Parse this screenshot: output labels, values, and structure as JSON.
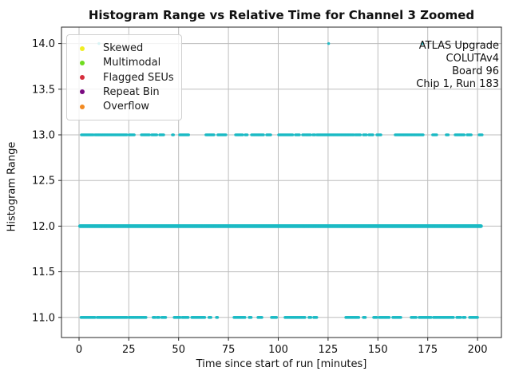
{
  "chart_data": {
    "type": "scatter",
    "title": "Histogram Range vs Relative Time for Channel 3 Zoomed",
    "xlabel": "Time since start of run [minutes]",
    "ylabel": "Histogram Range",
    "xlim": [
      -8.8,
      212
    ],
    "ylim": [
      10.78,
      14.18
    ],
    "grid": true,
    "point_color": "#1ab9c4",
    "x_ticks": [
      0,
      25,
      50,
      75,
      100,
      125,
      150,
      175,
      200
    ],
    "y_ticks": [
      {
        "v": 14.0,
        "label": "14.0"
      },
      {
        "v": 13.5,
        "label": "13.5"
      },
      {
        "v": 13.0,
        "label": "13.0"
      },
      {
        "v": 12.5,
        "label": "12.5"
      },
      {
        "v": 12.0,
        "label": "12.0"
      },
      {
        "v": 11.5,
        "label": "11.5"
      },
      {
        "v": 11.0,
        "label": "11.0"
      }
    ],
    "legend": {
      "position": "upper left",
      "items": [
        {
          "label": "Skewed",
          "color": "#f0ee23"
        },
        {
          "label": "Multimodal",
          "color": "#6fdc1f"
        },
        {
          "label": "Flagged SEUs",
          "color": "#d62e3c"
        },
        {
          "label": "Repeat Bin",
          "color": "#7a0a80"
        },
        {
          "label": "Overflow",
          "color": "#f28a22"
        }
      ]
    },
    "annotation": {
      "lines": [
        "ATLAS Upgrade",
        "COLUTAv4",
        "Board 96",
        "Chip 1, Run 183"
      ]
    },
    "series": [
      {
        "name": "range-14-points",
        "y": 14.0,
        "style": "points",
        "x": [
          10.0,
          125.3,
          172.3
        ]
      },
      {
        "name": "range-13-band",
        "y": 13.0,
        "style": "clusters",
        "intervals": [
          [
            1.2,
            7.2
          ],
          [
            8.0,
            24.0
          ],
          [
            25.2,
            28.1
          ],
          [
            31.3,
            35.3
          ],
          [
            36.5,
            39.3
          ],
          [
            40.5,
            42.5
          ],
          [
            46.9,
            47.7
          ],
          [
            50.5,
            55.3
          ],
          [
            63.7,
            67.7
          ],
          [
            69.7,
            73.7
          ],
          [
            78.6,
            82.2
          ],
          [
            83.4,
            84.6
          ],
          [
            86.6,
            88.2
          ],
          [
            88.6,
            92.6
          ],
          [
            94.2,
            96.2
          ],
          [
            100.2,
            107.4
          ],
          [
            108.6,
            110.6
          ],
          [
            112.2,
            116.6
          ],
          [
            117.4,
            118.6
          ],
          [
            119.4,
            138.3
          ],
          [
            138.7,
            141.5
          ],
          [
            142.7,
            144.3
          ],
          [
            145.5,
            147.5
          ],
          [
            149.5,
            151.5
          ],
          [
            158.7,
            170.3
          ],
          [
            170.7,
            172.7
          ],
          [
            177.5,
            179.5
          ],
          [
            184.3,
            185.5
          ],
          [
            188.8,
            193.6
          ],
          [
            194.8,
            196.8
          ],
          [
            200.8,
            202.4
          ]
        ]
      },
      {
        "name": "range-12-band",
        "y": 12.0,
        "style": "dense",
        "intervals": [
          [
            0.5,
            202.0
          ]
        ]
      },
      {
        "name": "range-11-band",
        "y": 11.0,
        "style": "clusters",
        "intervals": [
          [
            1.0,
            8.4
          ],
          [
            9.1,
            24.4
          ],
          [
            25.1,
            33.8
          ],
          [
            37.2,
            38.2
          ],
          [
            39.2,
            40.2
          ],
          [
            41.5,
            43.8
          ],
          [
            47.8,
            51.0
          ],
          [
            51.8,
            55.2
          ],
          [
            56.6,
            63.2
          ],
          [
            65.2,
            66.2
          ],
          [
            69.0,
            69.8
          ],
          [
            77.8,
            83.4
          ],
          [
            85.4,
            86.6
          ],
          [
            89.8,
            92.0
          ],
          [
            96.6,
            99.4
          ],
          [
            103.4,
            113.8
          ],
          [
            115.4,
            116.6
          ],
          [
            117.8,
            119.4
          ],
          [
            133.9,
            140.7
          ],
          [
            142.7,
            143.9
          ],
          [
            147.9,
            149.5
          ],
          [
            150.7,
            155.9
          ],
          [
            157.5,
            161.9
          ],
          [
            166.7,
            169.5
          ],
          [
            170.7,
            176.7
          ],
          [
            177.9,
            187.9
          ],
          [
            189.6,
            191.6
          ],
          [
            192.8,
            194.0
          ],
          [
            196.0,
            200.0
          ]
        ]
      }
    ]
  }
}
